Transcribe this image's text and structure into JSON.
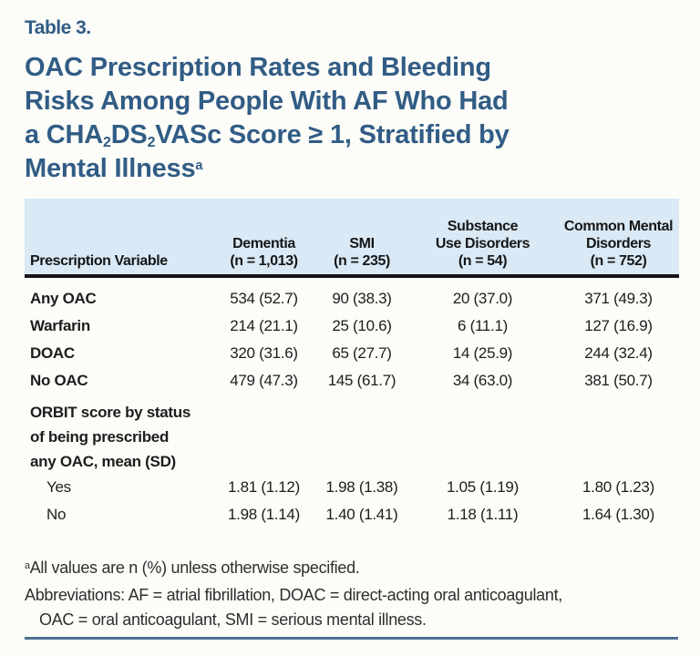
{
  "page": {
    "background_color": "#fcfcf8",
    "accent_blue": "#315c85",
    "header_band_color": "#d9e9f5",
    "header_rule_color": "#161616",
    "bottom_rule_color": "#4f7090"
  },
  "table_label": "Table 3.",
  "title": {
    "line1": "OAC Prescription Rates and Bleeding",
    "line2": "Risks Among People With AF Who Had",
    "line3": {
      "t1": "a CHA",
      "s1": "2",
      "t2": "DS",
      "s2": "2",
      "t3": "VASc Score ≥ 1, Stratified by"
    },
    "line4": "Mental Illness",
    "line4_sup": "a"
  },
  "table": {
    "header": {
      "col0": "Prescription Variable",
      "col1": [
        "Dementia",
        "(n = 1,013)"
      ],
      "col2": [
        "SMI",
        "(n = 235)"
      ],
      "col3": [
        "Substance",
        "Use Disorders",
        "(n = 54)"
      ],
      "col4": [
        "Common Mental",
        "Disorders",
        "(n = 752)"
      ]
    },
    "rows": [
      {
        "label": "Any OAC",
        "values": [
          "534 (52.7)",
          "90 (38.3)",
          "20 (37.0)",
          "371 (49.3)"
        ]
      },
      {
        "label": "Warfarin",
        "values": [
          "214 (21.1)",
          "25 (10.6)",
          "6 (11.1)",
          "127 (16.9)"
        ]
      },
      {
        "label": "DOAC",
        "values": [
          "320 (31.6)",
          "65 (27.7)",
          "14 (25.9)",
          "244 (32.4)"
        ]
      },
      {
        "label": "No OAC",
        "values": [
          "479 (47.3)",
          "145 (61.7)",
          "34 (63.0)",
          "381 (50.7)"
        ]
      }
    ],
    "section": {
      "lines": [
        "ORBIT score by status",
        "of being prescribed",
        "any OAC, mean (SD)"
      ]
    },
    "sub_rows": [
      {
        "label": "Yes",
        "values": [
          "1.81 (1.12)",
          "1.98 (1.38)",
          "1.05 (1.19)",
          "1.80 (1.23)"
        ]
      },
      {
        "label": "No",
        "values": [
          "1.98 (1.14)",
          "1.40 (1.41)",
          "1.18 (1.11)",
          "1.64 (1.30)"
        ]
      }
    ]
  },
  "footnotes": {
    "sup_marker": "a",
    "line1": "All values are n (%) unless otherwise specified.",
    "line2": "Abbreviations: AF = atrial fibrillation, DOAC = direct-acting oral anticoagulant,",
    "line3": "OAC = oral anticoagulant, SMI = serious mental illness."
  }
}
